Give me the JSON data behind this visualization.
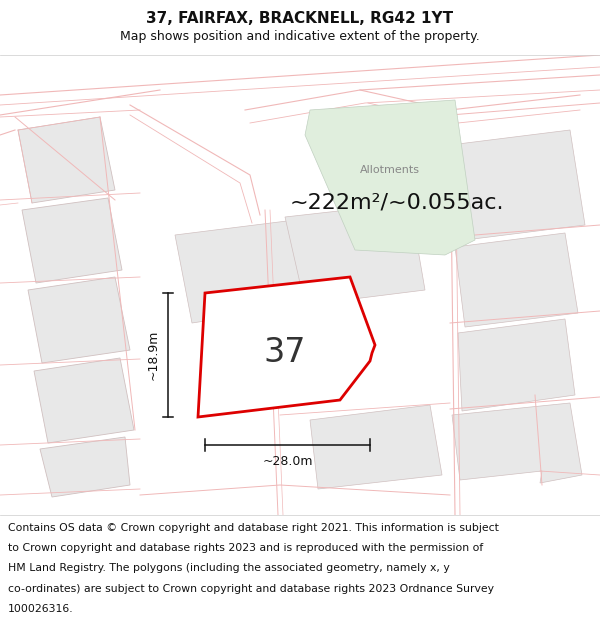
{
  "title": "37, FAIRFAX, BRACKNELL, RG42 1YT",
  "subtitle": "Map shows position and indicative extent of the property.",
  "area_text": "~222m²/~0.055ac.",
  "property_label": "37",
  "dim_width": "~28.0m",
  "dim_height": "~18.9m",
  "allotments_label": "Allotments",
  "footer_line1": "Contains OS data © Crown copyright and database right 2021. This information is subject",
  "footer_line2": "to Crown copyright and database rights 2023 and is reproduced with the permission of",
  "footer_line3": "HM Land Registry. The polygons (including the associated geometry, namely x, y",
  "footer_line4": "co-ordinates) are subject to Crown copyright and database rights 2023 Ordnance Survey",
  "footer_line5": "100026316.",
  "bg_color": "#ffffff",
  "map_bg": "#f8f8f8",
  "road_color": "#f0b8b8",
  "plot_fill": "#e8e8e8",
  "plot_edge": "#d0c0c0",
  "allotment_fill": "#e0eedd",
  "allotment_edge": "#c0d0c0",
  "prop_fill": "#ffffff",
  "prop_edge": "#dd0000",
  "dim_color": "#111111",
  "title_fs": 11,
  "subtitle_fs": 9,
  "area_fs": 16,
  "label_fs": 24,
  "footer_fs": 7.8,
  "annot_fs": 9
}
